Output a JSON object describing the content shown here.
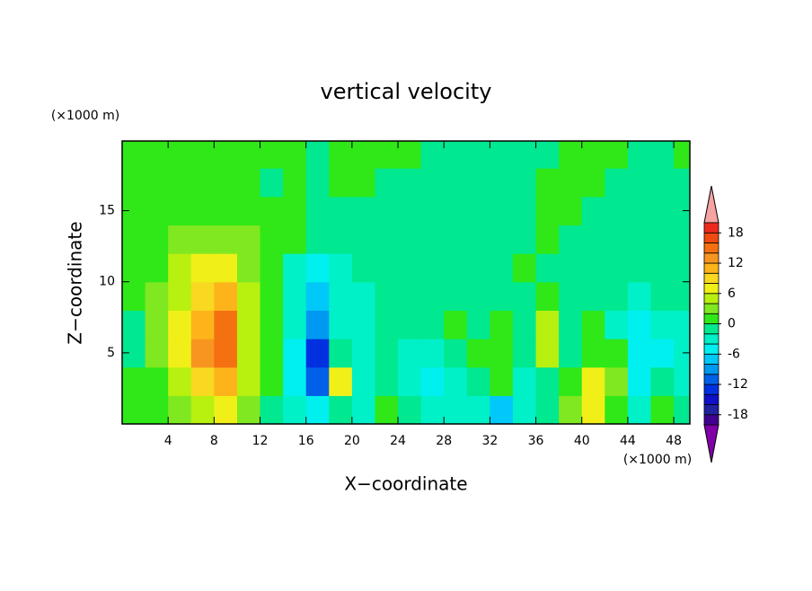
{
  "chart_data": {
    "type": "contour",
    "title": "vertical velocity",
    "xlabel": "X−coordinate",
    "ylabel": "Z−coordinate",
    "xunits": "(×1000 m)",
    "yunits": "(×1000 m)",
    "xlim": [
      0,
      49.4
    ],
    "ylim": [
      0,
      19.9
    ],
    "xticks": [
      4,
      8,
      12,
      16,
      20,
      24,
      28,
      32,
      36,
      40,
      44,
      48
    ],
    "yticks": [
      5,
      10,
      15
    ],
    "x": [
      1,
      3,
      5,
      7,
      9,
      11,
      13,
      15,
      17,
      19,
      21,
      23,
      25,
      27,
      29,
      31,
      33,
      35,
      37,
      39,
      41,
      43,
      45,
      47,
      49
    ],
    "z": [
      1,
      3,
      5,
      7,
      9,
      11,
      13,
      15,
      17,
      19
    ],
    "z_values": [
      [
        1,
        1,
        3,
        5,
        7,
        3,
        -1,
        -3,
        -5,
        -1,
        -3,
        1,
        -1,
        -3,
        -3,
        -3,
        -7,
        -3,
        -1,
        3,
        7,
        1,
        -3,
        1,
        -1
      ],
      [
        1,
        1,
        5,
        9,
        11,
        5,
        1,
        -5,
        -11,
        7,
        -3,
        -1,
        -3,
        -5,
        -3,
        -1,
        1,
        -3,
        -1,
        1,
        7,
        3,
        -5,
        -1,
        -3
      ],
      [
        -1,
        3,
        7,
        13,
        15,
        5,
        1,
        -5,
        -13,
        -1,
        -3,
        -1,
        -3,
        -3,
        -1,
        1,
        1,
        -1,
        5,
        -1,
        1,
        1,
        -5,
        -5,
        -3
      ],
      [
        -1,
        3,
        7,
        11,
        15,
        5,
        1,
        -3,
        -9,
        -3,
        -3,
        -1,
        -1,
        -1,
        1,
        -1,
        1,
        -1,
        5,
        -1,
        1,
        -3,
        -5,
        -3,
        -3
      ],
      [
        1,
        3,
        5,
        9,
        11,
        5,
        1,
        -3,
        -7,
        -3,
        -3,
        -1,
        -1,
        -1,
        -1,
        -1,
        -1,
        -1,
        1,
        -1,
        -1,
        -1,
        -3,
        -1,
        -1
      ],
      [
        1,
        1,
        5,
        7,
        7,
        3,
        1,
        -3,
        -5,
        -3,
        -1,
        -1,
        -1,
        -1,
        -1,
        -1,
        -1,
        1,
        -1,
        -1,
        -1,
        -1,
        -1,
        -1,
        -1
      ],
      [
        1,
        1,
        3,
        3,
        3,
        3,
        1,
        1,
        -1,
        -1,
        -1,
        -1,
        -1,
        -1,
        -1,
        -1,
        -1,
        -1,
        1,
        -1,
        -1,
        -1,
        -1,
        -1,
        -1
      ],
      [
        1,
        1,
        1,
        1,
        1,
        1,
        1,
        1,
        -1,
        -1,
        -1,
        -1,
        -1,
        -1,
        -1,
        -1,
        -1,
        -1,
        1,
        1,
        -1,
        -1,
        -1,
        -1,
        -1
      ],
      [
        1,
        1,
        1,
        1,
        1,
        1,
        -1,
        1,
        -1,
        1,
        1,
        -1,
        -1,
        -1,
        -1,
        -1,
        -1,
        -1,
        1,
        1,
        1,
        -1,
        -1,
        -1,
        -1
      ],
      [
        1,
        1,
        1,
        1,
        1,
        1,
        1,
        1,
        -1,
        1,
        1,
        1,
        1,
        -1,
        -1,
        -1,
        -1,
        -1,
        -1,
        1,
        1,
        1,
        -1,
        -1,
        1
      ]
    ],
    "levels": [
      -20,
      -18,
      -16,
      -14,
      -12,
      -10,
      -8,
      -6,
      -4,
      -2,
      0,
      2,
      4,
      6,
      8,
      10,
      12,
      14,
      16,
      18,
      20
    ],
    "colors": [
      "#8000a8",
      "#400090",
      "#2020a0",
      "#1010c8",
      "#0030e0",
      "#0060e8",
      "#0098f0",
      "#00c8f8",
      "#00f0f0",
      "#00f0c8",
      "#00e890",
      "#30e818",
      "#80e820",
      "#b8f010",
      "#f0f018",
      "#f8d820",
      "#fcb41a",
      "#f89520",
      "#f57010",
      "#f04a10",
      "#ee2a1e",
      "#f5a3a3"
    ],
    "colorbar_ticks": [
      -18,
      -12,
      -6,
      0,
      6,
      12,
      18
    ]
  }
}
